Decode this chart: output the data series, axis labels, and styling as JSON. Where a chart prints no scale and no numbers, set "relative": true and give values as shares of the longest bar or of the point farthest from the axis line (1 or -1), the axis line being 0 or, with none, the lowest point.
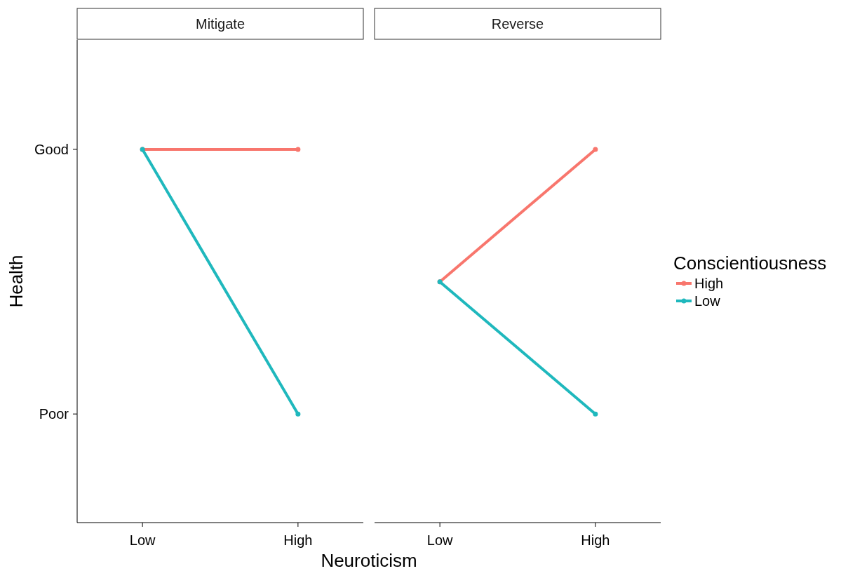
{
  "chart_data": [
    {
      "type": "line",
      "title": "Mitigate",
      "xlabel": "Neuroticism",
      "ylabel": "Health",
      "categories": [
        "Low",
        "High"
      ],
      "relative": true,
      "marker": "circle",
      "annotations": [
        "Good",
        "Poor"
      ],
      "series": [
        {
          "color": "#f8766d",
          "values": [
            1,
            1
          ]
        },
        {
          "color": "#1fb8bd",
          "values": [
            1,
            0.291
          ]
        }
      ]
    },
    {
      "type": "line",
      "title": "Reverse",
      "categories": [
        "Low",
        "High"
      ],
      "relative": true,
      "tick_labels": "x",
      "marker": "circle",
      "legend": "right",
      "legend_title": "Conscientiousness",
      "series": [
        {
          "name": "High",
          "color": "#f8766d",
          "values": [
            0.645,
            1
          ]
        },
        {
          "name": "Low",
          "color": "#1fb8bd",
          "values": [
            0.645,
            0.291
          ]
        }
      ]
    }
  ]
}
